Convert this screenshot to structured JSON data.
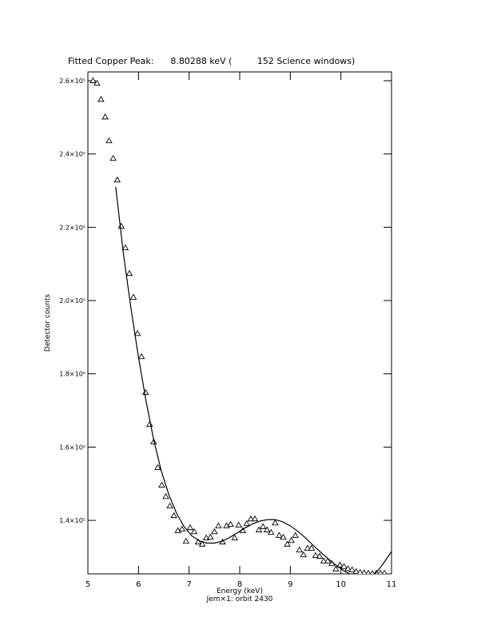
{
  "chart_data": {
    "type": "scatter",
    "title": "Fitted Copper Peak:      8.80288 keV (         152 Science windows)",
    "x_label": "Energy (keV)",
    "subtitle": "Jem×1: orbit 2430",
    "y_label": "Detector counts",
    "xlim": [
      5,
      11
    ],
    "xticks": [
      5,
      6,
      7,
      8,
      9,
      10,
      11
    ],
    "ylim": [
      125400,
      262400
    ],
    "yticks": [
      {
        "value": 140000,
        "label": "1.4×10⁵"
      },
      {
        "value": 160000,
        "label": "1.6×10⁵"
      },
      {
        "value": 180000,
        "label": "1.8×10⁵"
      },
      {
        "value": 200000,
        "label": "2.0×10⁵"
      },
      {
        "value": 220000,
        "label": "2.2×10⁵"
      },
      {
        "value": 240000,
        "label": "2.4×10⁵"
      },
      {
        "value": 260000,
        "label": "2.6×10⁵"
      }
    ],
    "series": [
      {
        "marker": "triangle",
        "color": "#000000",
        "x": [
          5.1,
          5.18,
          5.26,
          5.34,
          5.42,
          5.5,
          5.58,
          5.66,
          5.74,
          5.82,
          5.9,
          5.98,
          6.06,
          6.14,
          6.22,
          6.3,
          6.38,
          6.46,
          6.54,
          6.62,
          6.7,
          6.78,
          6.86,
          6.94,
          7.02,
          7.1,
          7.18,
          7.26,
          7.34,
          7.42,
          7.5,
          7.58,
          7.66,
          7.74,
          7.82,
          7.9,
          7.98,
          8.06,
          8.14,
          8.22,
          8.3,
          8.38,
          8.46,
          8.54,
          8.62,
          8.7,
          8.78,
          8.86,
          8.94,
          9.02,
          9.1,
          9.18,
          9.26,
          9.34,
          9.42,
          9.5,
          9.58,
          9.66,
          9.74,
          9.82,
          9.9,
          9.98,
          10.06,
          10.14,
          10.22,
          10.3,
          10.38,
          10.46,
          10.54,
          10.62,
          10.7,
          10.78,
          10.86
        ],
        "values": [
          260000,
          259300,
          254900,
          250100,
          243600,
          238800,
          232900,
          220300,
          214400,
          207400,
          200900,
          191000,
          184700,
          174900,
          166200,
          161400,
          154400,
          149600,
          146500,
          143900,
          141300,
          137200,
          137600,
          134300,
          138000,
          136900,
          134100,
          133500,
          135200,
          135400,
          136900,
          138500,
          134100,
          138500,
          138900,
          135200,
          138700,
          137200,
          139100,
          140400,
          140400,
          137400,
          138300,
          137400,
          136700,
          139300,
          135900,
          135400,
          133500,
          134500,
          135900,
          131900,
          130600,
          132400,
          132400,
          130400,
          130200,
          128900,
          128900,
          128200,
          126700,
          127800,
          127400,
          126800,
          126500,
          126000,
          125800,
          125700,
          125600,
          125500,
          125600,
          125600,
          125600
        ]
      },
      {
        "marker": "line",
        "color": "#000000",
        "x": [
          5.55,
          5.7,
          5.85,
          6.0,
          6.15,
          6.3,
          6.45,
          6.6,
          6.75,
          6.9,
          7.05,
          7.2,
          7.35,
          7.5,
          7.65,
          7.8,
          7.95,
          8.1,
          8.25,
          8.4,
          8.55,
          8.7,
          8.85,
          9.0,
          9.15,
          9.3,
          9.45,
          9.6,
          9.75,
          9.9,
          10.05,
          10.2,
          10.35,
          10.5,
          10.65,
          10.8,
          10.95,
          11.0
        ],
        "values": [
          231000,
          213000,
          198000,
          184500,
          172500,
          162000,
          153500,
          147000,
          142000,
          138300,
          135800,
          134400,
          133800,
          133800,
          134300,
          135300,
          136600,
          137900,
          139000,
          139800,
          140200,
          140200,
          139600,
          138500,
          137000,
          135200,
          133200,
          131300,
          129500,
          127800,
          126300,
          125200,
          124500,
          124300,
          125000,
          127500,
          130500,
          131500
        ]
      }
    ]
  }
}
